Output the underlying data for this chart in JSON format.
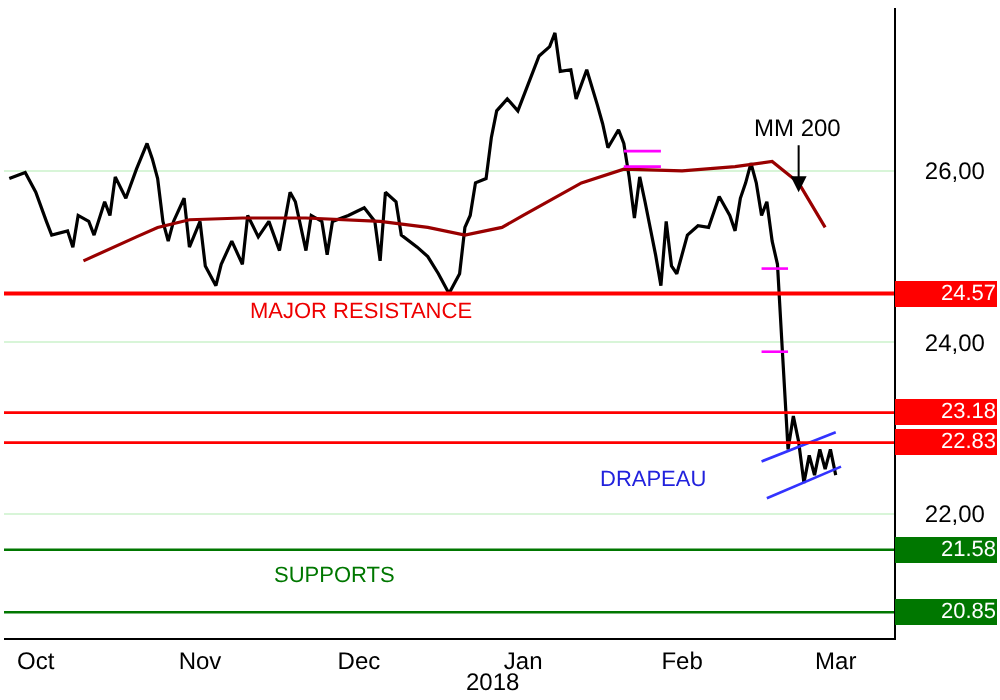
{
  "chart_data": {
    "type": "line",
    "xlim": [
      "2017-10-10",
      "2018-03-27"
    ],
    "xticks": [
      {
        "value": "2017-10-16",
        "label": "Oct"
      },
      {
        "value": "2017-11-16",
        "label": "Nov"
      },
      {
        "value": "2017-12-16",
        "label": "Dec"
      },
      {
        "value": "2018-01-16",
        "label": "Jan"
      },
      {
        "value": "2018-02-15",
        "label": "Feb"
      },
      {
        "value": "2018-03-16",
        "label": "Mar"
      }
    ],
    "ylim": [
      20.55,
      27.9
    ],
    "yticks": [
      {
        "value": 22,
        "label": "22,00"
      },
      {
        "value": 24,
        "label": "24,00"
      },
      {
        "value": 26,
        "label": "26,00"
      }
    ],
    "grid": "y",
    "series": [
      {
        "color": "#000000",
        "x": [
          "2017-10-11",
          "2017-10-14",
          "2017-10-16",
          "2017-10-18",
          "2017-10-19",
          "2017-10-22",
          "2017-10-23",
          "2017-10-24",
          "2017-10-26",
          "2017-10-27",
          "2017-10-29",
          "2017-10-30",
          "2017-10-31",
          "2017-11-02",
          "2017-11-04",
          "2017-11-06",
          "2017-11-07",
          "2017-11-08",
          "2017-11-09",
          "2017-11-10",
          "2017-11-11",
          "2017-11-13",
          "2017-11-14",
          "2017-11-16",
          "2017-11-17",
          "2017-11-19",
          "2017-11-20",
          "2017-11-22",
          "2017-11-24",
          "2017-11-25",
          "2017-11-27",
          "2017-11-29",
          "2017-12-01",
          "2017-12-02",
          "2017-12-03",
          "2017-12-04",
          "2017-12-06",
          "2017-12-07",
          "2017-12-09",
          "2017-12-10",
          "2017-12-11",
          "2017-12-14",
          "2017-12-17",
          "2017-12-19",
          "2017-12-20",
          "2017-12-21",
          "2017-12-23",
          "2017-12-24",
          "2017-12-27",
          "2017-12-29",
          "2017-12-31",
          "2018-01-02",
          "2018-01-04",
          "2018-01-05",
          "2018-01-06",
          "2018-01-07",
          "2018-01-09",
          "2018-01-10",
          "2018-01-11",
          "2018-01-13",
          "2018-01-15",
          "2018-01-19",
          "2018-01-21",
          "2018-01-22",
          "2018-01-23",
          "2018-01-25",
          "2018-01-26",
          "2018-01-28",
          "2018-01-30",
          "2018-01-31",
          "2018-02-01",
          "2018-02-03",
          "2018-02-04",
          "2018-02-05",
          "2018-02-06",
          "2018-02-07",
          "2018-02-08",
          "2018-02-10",
          "2018-02-11",
          "2018-02-12",
          "2018-02-13",
          "2018-02-14",
          "2018-02-16",
          "2018-02-18",
          "2018-02-20",
          "2018-02-22",
          "2018-02-24",
          "2018-02-25",
          "2018-02-26",
          "2018-02-27",
          "2018-02-28",
          "2018-03-01",
          "2018-03-02",
          "2018-03-03",
          "2018-03-04",
          "2018-03-05",
          "2018-03-06",
          "2018-03-07",
          "2018-03-08",
          "2018-03-09",
          "2018-03-10",
          "2018-03-11",
          "2018-03-12",
          "2018-03-13",
          "2018-03-14",
          "2018-03-15",
          "2018-03-16"
        ],
        "values": [
          25.91,
          25.98,
          25.75,
          25.41,
          25.25,
          25.3,
          25.11,
          25.48,
          25.41,
          25.25,
          25.64,
          25.48,
          25.93,
          25.68,
          26.02,
          26.32,
          26.14,
          25.91,
          25.41,
          25.18,
          25.41,
          25.68,
          25.11,
          25.41,
          24.89,
          24.66,
          24.91,
          25.18,
          24.91,
          25.48,
          25.23,
          25.41,
          25.07,
          25.41,
          25.75,
          25.64,
          25.07,
          25.48,
          25.41,
          25.02,
          25.41,
          25.48,
          25.57,
          25.41,
          24.95,
          25.75,
          25.64,
          25.25,
          25.11,
          25.0,
          24.8,
          24.57,
          24.8,
          25.34,
          25.48,
          25.86,
          25.91,
          26.39,
          26.7,
          26.84,
          26.7,
          27.34,
          27.45,
          27.61,
          27.16,
          27.18,
          26.84,
          27.18,
          26.77,
          26.55,
          26.27,
          26.48,
          26.32,
          25.93,
          25.45,
          25.93,
          25.64,
          25.02,
          24.66,
          25.41,
          24.89,
          24.8,
          25.25,
          25.36,
          25.34,
          25.7,
          25.48,
          25.3,
          25.68,
          25.86,
          26.09,
          25.86,
          25.48,
          25.64,
          25.18,
          24.91,
          23.82,
          22.75,
          23.14,
          22.84,
          22.36,
          22.68,
          22.45,
          22.75,
          22.52,
          22.75,
          22.45
        ]
      },
      {
        "color": "#990000",
        "x": [
          "2017-10-25",
          "2017-11-04",
          "2017-11-08",
          "2017-11-14",
          "2017-11-24",
          "2017-12-06",
          "2017-12-20",
          "2017-12-29",
          "2018-01-05",
          "2018-01-12",
          "2018-01-16",
          "2018-01-27",
          "2018-02-04",
          "2018-02-15",
          "2018-02-25",
          "2018-03-04",
          "2018-03-09",
          "2018-03-14"
        ],
        "values": [
          24.95,
          25.23,
          25.34,
          25.43,
          25.45,
          25.45,
          25.41,
          25.34,
          25.25,
          25.34,
          25.48,
          25.86,
          26.02,
          26.0,
          26.05,
          26.11,
          25.86,
          25.34
        ]
      },
      {
        "color": "#ff00ff",
        "x": [
          "2018-02-04",
          "2018-02-11"
        ],
        "values": [
          26.23,
          26.23
        ]
      },
      {
        "color": "#ff00ff",
        "x": [
          "2018-02-04",
          "2018-02-11"
        ],
        "values": [
          26.05,
          26.05
        ]
      },
      {
        "color": "#ff00ff",
        "x": [
          "2018-03-02",
          "2018-03-07"
        ],
        "values": [
          24.86,
          24.86
        ]
      },
      {
        "color": "#ff00ff",
        "x": [
          "2018-03-02",
          "2018-03-07"
        ],
        "values": [
          23.89,
          23.89
        ]
      },
      {
        "color": "#3333ff",
        "x": [
          "2018-03-02",
          "2018-03-16"
        ],
        "values": [
          22.61,
          22.95
        ]
      },
      {
        "color": "#3333ff",
        "x": [
          "2018-03-03",
          "2018-03-17"
        ],
        "values": [
          22.18,
          22.55
        ]
      }
    ],
    "ref_lines": [
      {
        "axis": "y",
        "value": 24.57,
        "label": "24.57",
        "color": "#ff0000"
      },
      {
        "axis": "y",
        "value": 23.18,
        "label": "23.18",
        "color": "#ff0000"
      },
      {
        "axis": "y",
        "value": 22.83,
        "label": "22.83",
        "color": "#ff0000"
      },
      {
        "axis": "y",
        "value": 21.58,
        "label": "21.58",
        "color": "#007700"
      },
      {
        "axis": "y",
        "value": 20.85,
        "label": "20.85",
        "color": "#007700"
      }
    ],
    "annotations": [
      "MAJOR RESISTANCE",
      "SUPPORTS",
      "DRAPEAU",
      {
        "text": "MM 200",
        "x": "2018-03-09",
        "y": 25.75
      },
      "2018"
    ]
  }
}
